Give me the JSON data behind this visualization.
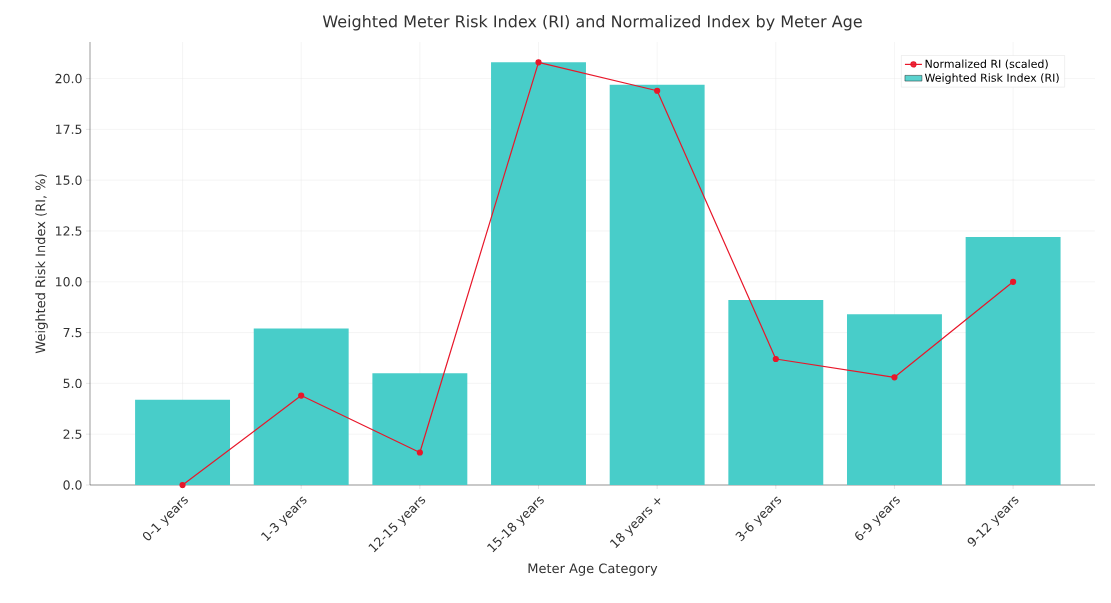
{
  "chart_data": {
    "type": "bar",
    "title": "Weighted Meter Risk Index (RI) and Normalized Index by Meter Age",
    "xlabel": "Meter Age Category",
    "ylabel": "Weighted Risk Index (RI, %)",
    "categories": [
      "0-1 years",
      "1-3 years",
      "12-15 years",
      "15-18 years",
      "18 years +",
      "3-6 years",
      "6-9 years",
      "9-12 years"
    ],
    "series": [
      {
        "name": "Weighted Risk Index (RI)",
        "color": "#48cdc9",
        "values": [
          4.2,
          7.7,
          5.5,
          20.8,
          19.7,
          9.1,
          8.4,
          12.2
        ]
      },
      {
        "name": "Normalized RI (scaled)",
        "type": "line",
        "color": "#e8172a",
        "values": [
          0.0,
          4.4,
          1.6,
          20.8,
          19.4,
          6.2,
          5.3,
          10.0
        ]
      }
    ],
    "ylim": [
      0,
      21.8
    ],
    "yticks": [
      {
        "value": 0,
        "label": "0.0"
      },
      2.5,
      {
        "value": 5,
        "label": "5.0"
      },
      7.5,
      {
        "value": 10,
        "label": "10.0"
      },
      12.5,
      {
        "value": 15,
        "label": "15.0"
      },
      17.5,
      {
        "value": 20,
        "label": "20.0"
      }
    ],
    "grid": true,
    "legend": "top right",
    "marker": "circle",
    "line_style": "solid"
  }
}
